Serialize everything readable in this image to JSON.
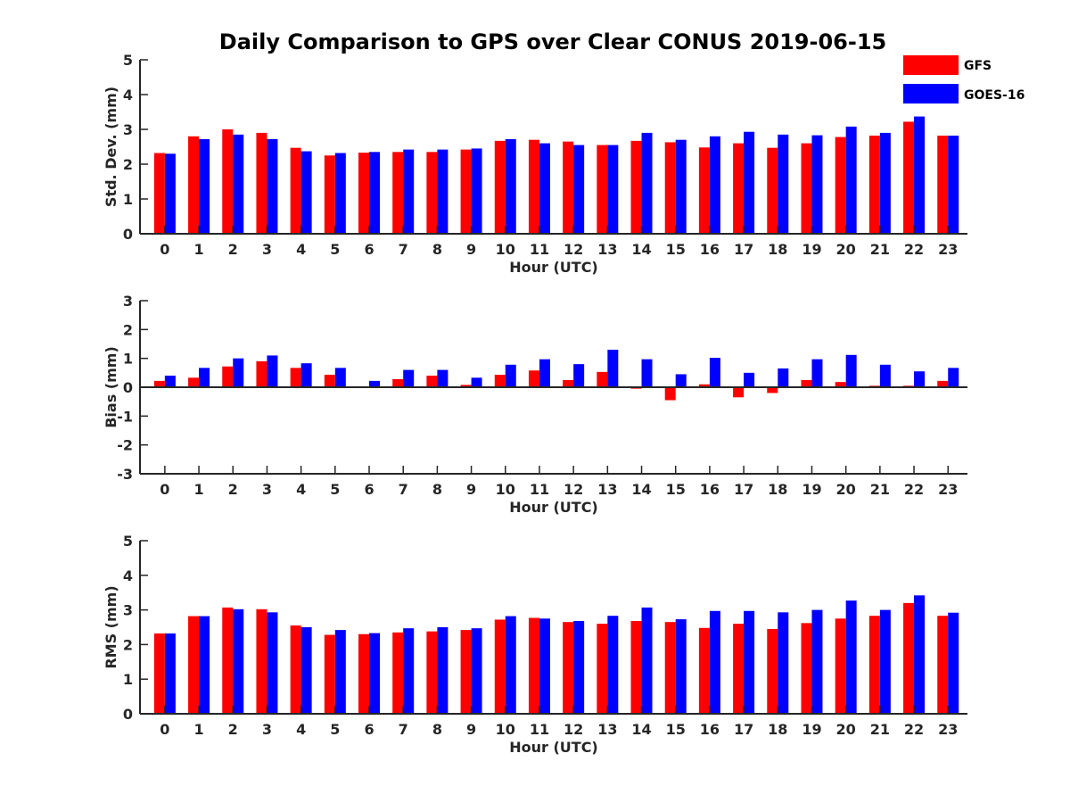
{
  "title": "Daily Comparison to GPS over Clear CONUS 2019-06-15",
  "legend": [
    {
      "name": "GFS",
      "color": "#ff0000"
    },
    {
      "name": "GOES-16",
      "color": "#0000ff"
    }
  ],
  "chart_data": [
    {
      "type": "bar",
      "title": "Daily Comparison to GPS over Clear CONUS 2019-06-15",
      "xlabel": "Hour (UTC)",
      "ylabel": "Std. Dev. (mm)",
      "ylim": [
        0,
        5
      ],
      "yticks": [
        0,
        1,
        2,
        3,
        4,
        5
      ],
      "categories": [
        "0",
        "1",
        "2",
        "3",
        "4",
        "5",
        "6",
        "7",
        "8",
        "9",
        "10",
        "11",
        "12",
        "13",
        "14",
        "15",
        "16",
        "17",
        "18",
        "19",
        "20",
        "21",
        "22",
        "23"
      ],
      "series": [
        {
          "name": "GFS",
          "color": "#ff0000",
          "values": [
            2.32,
            2.8,
            3.0,
            2.9,
            2.47,
            2.25,
            2.33,
            2.35,
            2.35,
            2.42,
            2.67,
            2.7,
            2.65,
            2.55,
            2.67,
            2.63,
            2.48,
            2.6,
            2.47,
            2.6,
            2.78,
            2.82,
            3.22,
            2.82
          ]
        },
        {
          "name": "GOES-16",
          "color": "#0000ff",
          "values": [
            2.3,
            2.72,
            2.85,
            2.72,
            2.37,
            2.32,
            2.35,
            2.42,
            2.42,
            2.45,
            2.72,
            2.6,
            2.55,
            2.55,
            2.9,
            2.7,
            2.8,
            2.93,
            2.85,
            2.83,
            3.08,
            2.9,
            3.37,
            2.82
          ]
        }
      ]
    },
    {
      "type": "bar",
      "xlabel": "Hour (UTC)",
      "ylabel": "Bias (mm)",
      "ylim": [
        -3,
        3
      ],
      "yticks": [
        -3,
        -2,
        -1,
        0,
        1,
        2,
        3
      ],
      "categories": [
        "0",
        "1",
        "2",
        "3",
        "4",
        "5",
        "6",
        "7",
        "8",
        "9",
        "10",
        "11",
        "12",
        "13",
        "14",
        "15",
        "16",
        "17",
        "18",
        "19",
        "20",
        "21",
        "22",
        "23"
      ],
      "series": [
        {
          "name": "GFS",
          "color": "#ff0000",
          "values": [
            0.22,
            0.33,
            0.72,
            0.9,
            0.67,
            0.43,
            0.0,
            0.28,
            0.4,
            0.08,
            0.43,
            0.58,
            0.25,
            0.53,
            -0.05,
            -0.45,
            0.1,
            -0.35,
            -0.2,
            0.25,
            0.18,
            0.05,
            0.05,
            0.22
          ]
        },
        {
          "name": "GOES-16",
          "color": "#0000ff",
          "values": [
            0.4,
            0.67,
            1.0,
            1.1,
            0.83,
            0.67,
            0.22,
            0.6,
            0.6,
            0.33,
            0.78,
            0.97,
            0.8,
            1.3,
            0.97,
            0.45,
            1.02,
            0.5,
            0.65,
            0.97,
            1.12,
            0.78,
            0.55,
            0.67
          ]
        }
      ]
    },
    {
      "type": "bar",
      "xlabel": "Hour (UTC)",
      "ylabel": "RMS (mm)",
      "ylim": [
        0,
        5
      ],
      "yticks": [
        0,
        1,
        2,
        3,
        4,
        5
      ],
      "categories": [
        "0",
        "1",
        "2",
        "3",
        "4",
        "5",
        "6",
        "7",
        "8",
        "9",
        "10",
        "11",
        "12",
        "13",
        "14",
        "15",
        "16",
        "17",
        "18",
        "19",
        "20",
        "21",
        "22",
        "23"
      ],
      "series": [
        {
          "name": "GFS",
          "color": "#ff0000",
          "values": [
            2.32,
            2.82,
            3.07,
            3.02,
            2.55,
            2.28,
            2.3,
            2.35,
            2.38,
            2.42,
            2.72,
            2.77,
            2.65,
            2.6,
            2.68,
            2.65,
            2.48,
            2.6,
            2.45,
            2.62,
            2.75,
            2.83,
            3.2,
            2.83
          ]
        },
        {
          "name": "GOES-16",
          "color": "#0000ff",
          "values": [
            2.32,
            2.82,
            3.02,
            2.93,
            2.5,
            2.42,
            2.33,
            2.47,
            2.5,
            2.47,
            2.82,
            2.75,
            2.68,
            2.83,
            3.07,
            2.73,
            2.97,
            2.97,
            2.93,
            3.0,
            3.27,
            3.0,
            3.42,
            2.92
          ]
        }
      ]
    }
  ]
}
